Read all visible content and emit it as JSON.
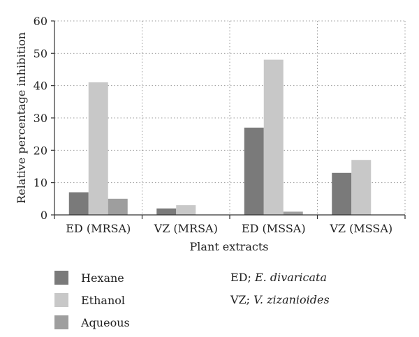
{
  "chart_data": {
    "type": "bar",
    "categories": [
      "ED (MRSA)",
      "VZ (MRSA)",
      "ED (MSSA)",
      "VZ (MSSA)"
    ],
    "series": [
      {
        "name": "Hexane",
        "values": [
          7,
          2,
          27,
          13
        ],
        "color": "#7a7a7a"
      },
      {
        "name": "Ethanol",
        "values": [
          41,
          3,
          48,
          17
        ],
        "color": "#c8c8c8"
      },
      {
        "name": "Aqueous",
        "values": [
          5,
          0,
          1,
          0
        ],
        "color": "#9e9e9e"
      }
    ],
    "xlabel": "Plant extracts",
    "ylabel": "Relative percentage inhibition",
    "ylim": [
      0,
      60
    ],
    "yticks": [
      0,
      10,
      20,
      30,
      40,
      50,
      60
    ],
    "grid": "horizontal-dotted",
    "legend_position": "bottom-left"
  },
  "notes": [
    {
      "prefix": "ED; ",
      "name": "E. divaricata"
    },
    {
      "prefix": "VZ; ",
      "name": "V. zizanioides"
    }
  ]
}
